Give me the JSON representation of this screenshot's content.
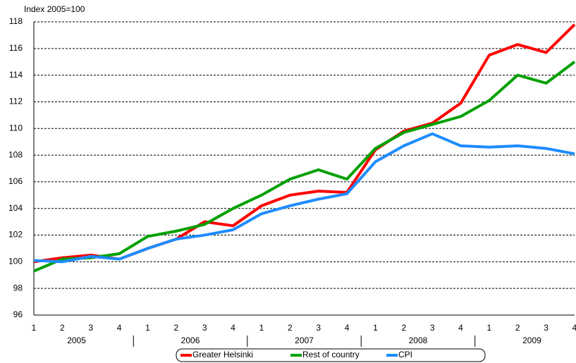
{
  "chart_data": {
    "type": "line",
    "ylabel": "Index 2005=100",
    "categories": [
      "1",
      "2",
      "3",
      "4",
      "1",
      "2",
      "3",
      "4",
      "1",
      "2",
      "3",
      "4",
      "1",
      "2",
      "3",
      "4",
      "1",
      "2",
      "3",
      "4"
    ],
    "year_groups": [
      "2005",
      "2006",
      "2007",
      "2008",
      "2009"
    ],
    "series": [
      {
        "name": "Greater Helsinki",
        "color": "#ff0000",
        "values": [
          100.0,
          100.3,
          100.5,
          100.2,
          101.0,
          101.7,
          103.0,
          102.7,
          104.2,
          105.0,
          105.3,
          105.2,
          108.4,
          109.8,
          110.4,
          111.9,
          115.5,
          116.3,
          115.7,
          117.8
        ]
      },
      {
        "name": "Rest of country",
        "color": "#00a000",
        "values": [
          99.3,
          100.2,
          100.3,
          100.6,
          101.9,
          102.3,
          102.8,
          104.0,
          105.0,
          106.2,
          106.9,
          106.2,
          108.5,
          109.7,
          110.3,
          110.9,
          112.1,
          114.0,
          113.4,
          115.0
        ]
      },
      {
        "name": "CPI",
        "color": "#1e8cff",
        "values": [
          100.1,
          100.0,
          100.4,
          100.2,
          101.0,
          101.7,
          102.0,
          102.4,
          103.6,
          104.2,
          104.7,
          105.1,
          107.5,
          108.7,
          109.6,
          108.7,
          108.6,
          108.7,
          108.5,
          108.1
        ]
      }
    ],
    "ylim": [
      96,
      118
    ],
    "yticks": [
      96,
      98,
      100,
      102,
      104,
      106,
      108,
      110,
      112,
      114,
      116,
      118
    ],
    "grid": true
  }
}
